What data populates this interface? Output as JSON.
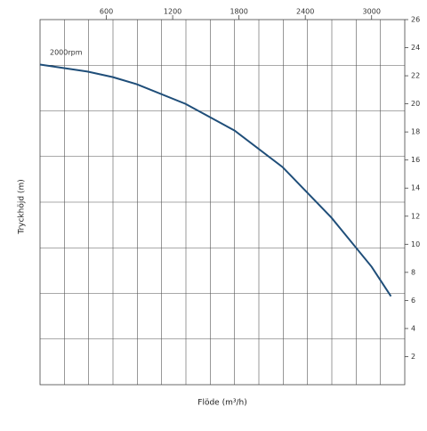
{
  "chart_data": {
    "type": "line",
    "xlabel": "Flöde (m³/h)",
    "ylabel": "Tryckhöjd (m)",
    "annotation": "2000rpm",
    "x": [
      0,
      430,
      660,
      875,
      1316,
      1760,
      2194,
      2636,
      3000,
      3175
    ],
    "series": [
      {
        "name": "2000rpm",
        "color": "#1f4e79",
        "values": [
          22.8,
          22.3,
          21.9,
          21.4,
          20.0,
          18.1,
          15.5,
          11.9,
          8.4,
          6.3
        ]
      }
    ],
    "xlim": [
      0,
      3300
    ],
    "ylim": [
      0,
      26
    ],
    "xticks": [
      600,
      1200,
      1800,
      2400,
      3000
    ],
    "yticks": [
      2,
      4,
      6,
      8,
      10,
      12,
      14,
      16,
      18,
      20,
      22,
      24,
      26
    ],
    "xgrid": [
      220,
      440,
      660,
      880,
      1100,
      1320,
      1540,
      1760,
      1980,
      2200,
      2420,
      2640,
      2860,
      3080
    ],
    "ygrid": [
      3.25,
      6.5,
      9.75,
      13,
      16.25,
      19.5,
      22.75
    ]
  }
}
